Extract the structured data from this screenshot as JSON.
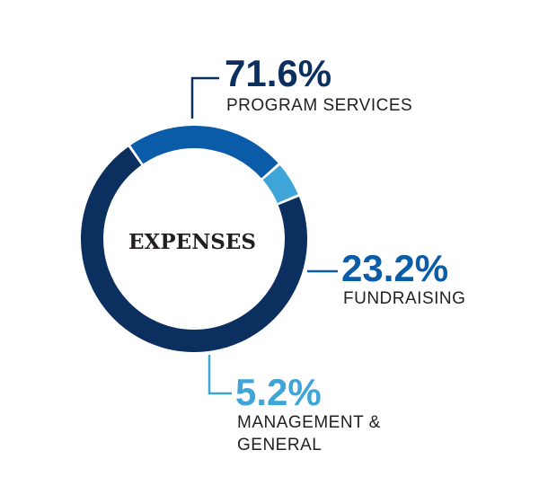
{
  "chart_data": {
    "type": "pie",
    "title": "EXPENSES",
    "slices": [
      {
        "label": "PROGRAM SERVICES",
        "label_lines": [
          "PROGRAM SERVICES"
        ],
        "value": 71.6,
        "display": "71.6%",
        "color": "#0b2f5f"
      },
      {
        "label": "FUNDRAISING",
        "label_lines": [
          "FUNDRAISING"
        ],
        "value": 23.2,
        "display": "23.2%",
        "color": "#0a5ca8"
      },
      {
        "label": "MANAGEMENT & GENERAL",
        "label_lines": [
          "MANAGEMENT &",
          "GENERAL"
        ],
        "value": 5.2,
        "display": "5.2%",
        "color": "#3fa4d8"
      }
    ]
  },
  "colors": {
    "center_text": "#231f20",
    "label_text": "#231f20"
  }
}
